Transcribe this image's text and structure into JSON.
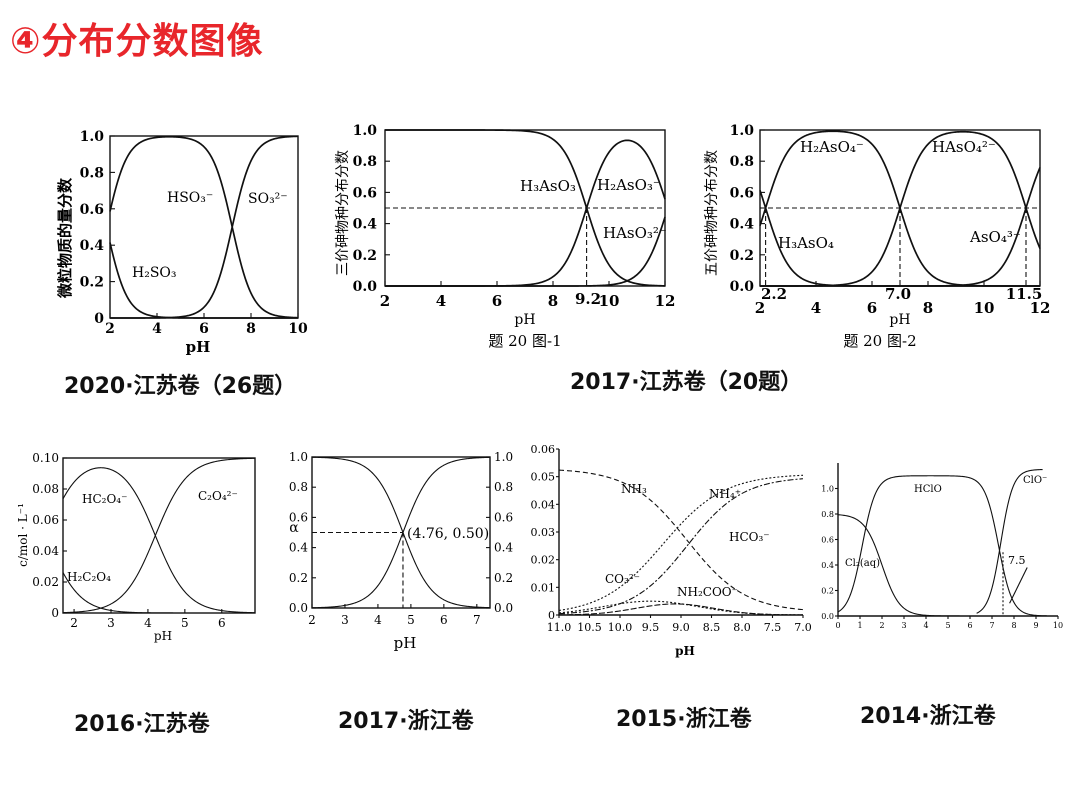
{
  "title": "④分布分数图像",
  "captions": {
    "c1": "2020·江苏卷（26题）",
    "c2": "2017·江苏卷（20题）",
    "c3": "2016·江苏卷",
    "c4": "2017·浙江卷",
    "c5": "2015·浙江卷",
    "c6": "2014·浙江卷"
  },
  "chart_data": [
    {
      "type": "line",
      "id": "chart1",
      "ylabel": "微粒物质的量分数",
      "xlabel": "pH",
      "xlim": [
        2,
        10
      ],
      "ylim": [
        0,
        1.0
      ],
      "xticks": [
        "2",
        "4",
        "6",
        "8",
        "10"
      ],
      "yticks": [
        "0",
        "0.2",
        "0.4",
        "0.6",
        "0.8",
        "1.0"
      ],
      "pKa": [
        1.85,
        7.2
      ],
      "series": [
        {
          "name": "H₂SO₃"
        },
        {
          "name": "HSO₃⁻"
        },
        {
          "name": "SO₃²⁻"
        }
      ]
    },
    {
      "type": "line",
      "id": "chart2",
      "ylabel": "三价砷物种分布分数",
      "xlabel": "pH",
      "subtitle": "题 20 图-1",
      "xlim": [
        2,
        12
      ],
      "ylim": [
        0,
        1.0
      ],
      "xticks": [
        "2",
        "4",
        "6",
        "8",
        "10",
        "12"
      ],
      "yticks": [
        "0.0",
        "0.2",
        "0.4",
        "0.6",
        "0.8",
        "1.0"
      ],
      "annotation_x": "9.2",
      "pKa": [
        9.2,
        12.1
      ],
      "series": [
        {
          "name": "H₃AsO₃"
        },
        {
          "name": "H₂AsO₃⁻"
        },
        {
          "name": "HAsO₃²⁻"
        }
      ]
    },
    {
      "type": "line",
      "id": "chart3",
      "ylabel": "五价砷物种分布分数",
      "xlabel": "pH",
      "subtitle": "题 20 图-2",
      "xlim": [
        2,
        12
      ],
      "ylim": [
        0,
        1.0
      ],
      "xticks": [
        "2",
        "4",
        "6",
        "8",
        "10",
        "12"
      ],
      "yticks": [
        "0.0",
        "0.2",
        "0.4",
        "0.6",
        "0.8",
        "1.0"
      ],
      "annotations_x": [
        "2.2",
        "7.0",
        "11.5"
      ],
      "pKa": [
        2.2,
        7.0,
        11.5
      ],
      "series": [
        {
          "name": "H₃AsO₄"
        },
        {
          "name": "H₂AsO₄⁻"
        },
        {
          "name": "HAsO₄²⁻"
        },
        {
          "name": "AsO₄³⁻"
        }
      ]
    },
    {
      "type": "line",
      "id": "chart4",
      "ylabel": "c/mol · L⁻¹",
      "xlabel": "pH",
      "xlim": [
        1.7,
        6.9
      ],
      "ylim": [
        0,
        0.1
      ],
      "xticks": [
        "2",
        "3",
        "4",
        "5",
        "6"
      ],
      "yticks": [
        "0",
        "0.02",
        "0.04",
        "0.06",
        "0.08",
        "0.10"
      ],
      "pKa": [
        1.25,
        4.2
      ],
      "total": 0.1,
      "series": [
        {
          "name": "H₂C₂O₄"
        },
        {
          "name": "HC₂O₄⁻"
        },
        {
          "name": "C₂O₄²⁻"
        }
      ]
    },
    {
      "type": "line",
      "id": "chart5",
      "ylabel": "α",
      "xlabel": "pH",
      "xlim": [
        2,
        7.4
      ],
      "ylim": [
        0,
        1.0
      ],
      "xticks": [
        "2",
        "3",
        "4",
        "5",
        "6",
        "7"
      ],
      "yticks": [
        "0.0",
        "0.2",
        "0.4",
        "0.6",
        "0.8",
        "1.0"
      ],
      "point_label": "(4.76, 0.50)",
      "pKa": [
        4.76
      ]
    },
    {
      "type": "line",
      "id": "chart6",
      "xlabel": "pH",
      "xlim": [
        11.0,
        7.0
      ],
      "ylim": [
        0,
        0.06
      ],
      "xticks": [
        "11.0",
        "10.5",
        "10.0",
        "9.5",
        "9.0",
        "8.5",
        "8.0",
        "7.5",
        "7.0"
      ],
      "yticks": [
        "0",
        "0.01",
        "0.02",
        "0.03",
        "0.04",
        "0.05",
        "0.06"
      ],
      "series": [
        {
          "name": "NH₃"
        },
        {
          "name": "NH₄⁺"
        },
        {
          "name": "HCO₃⁻"
        },
        {
          "name": "CO₃²⁻"
        },
        {
          "name": "NH₂COO⁻"
        }
      ]
    },
    {
      "type": "line",
      "id": "chart7",
      "xlim": [
        0,
        10
      ],
      "ylim": [
        0,
        1.2
      ],
      "xticks": [
        "0",
        "1",
        "2",
        "3",
        "4",
        "5",
        "6",
        "7",
        "8",
        "9",
        "10"
      ],
      "yticks": [
        "0.0",
        "0.2",
        "0.4",
        "0.6",
        "0.8",
        "1.0"
      ],
      "annotation": "7.5",
      "series": [
        {
          "name": "Cl₂(aq)"
        },
        {
          "name": "HClO"
        },
        {
          "name": "ClO⁻"
        }
      ]
    }
  ]
}
